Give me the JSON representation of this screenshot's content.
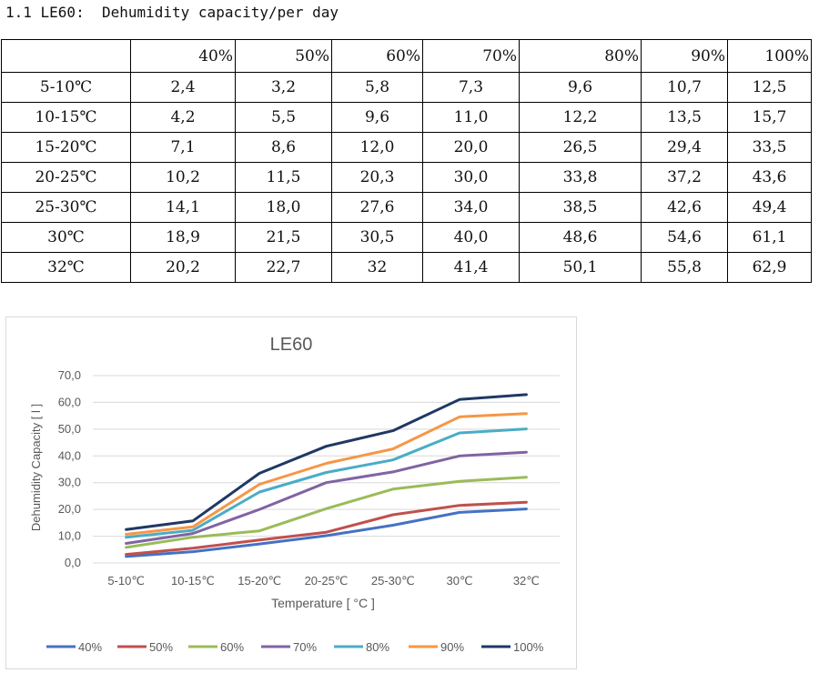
{
  "heading": "1.1 LE60:  Dehumidity capacity/per day",
  "table": {
    "columns": [
      "",
      "40%",
      "50%",
      "60%",
      "70%",
      "80%",
      "90%",
      "100%"
    ],
    "rows": [
      [
        "5-10℃",
        "2,4",
        "3,2",
        "5,8",
        "7,3",
        "9,6",
        "10,7",
        "12,5"
      ],
      [
        "10-15℃",
        "4,2",
        "5,5",
        "9,6",
        "11,0",
        "12,2",
        "13,5",
        "15,7"
      ],
      [
        "15-20℃",
        "7,1",
        "8,6",
        "12,0",
        "20,0",
        "26,5",
        "29,4",
        "33,5"
      ],
      [
        "20-25℃",
        "10,2",
        "11,5",
        "20,3",
        "30,0",
        "33,8",
        "37,2",
        "43,6"
      ],
      [
        "25-30℃",
        "14,1",
        "18,0",
        "27,6",
        "34,0",
        "38,5",
        "42,6",
        "49,4"
      ],
      [
        "30℃",
        "18,9",
        "21,5",
        "30,5",
        "40,0",
        "48,6",
        "54,6",
        "61,1"
      ],
      [
        "32℃",
        "20,2",
        "22,7",
        "32",
        "41,4",
        "50,1",
        "55,8",
        "62,9"
      ]
    ]
  },
  "chart_data": {
    "type": "line",
    "title": "LE60",
    "xlabel": "Temperature [ °C ]",
    "ylabel": "Dehumidity Capacity [ l ]",
    "categories": [
      "5-10℃",
      "10-15℃",
      "15-20℃",
      "20-25℃",
      "25-30℃",
      "30℃",
      "32℃"
    ],
    "ylim": [
      0,
      70
    ],
    "yticks": [
      0,
      10,
      20,
      30,
      40,
      50,
      60,
      70
    ],
    "ytick_labels": [
      "0,0",
      "10,0",
      "20,0",
      "30,0",
      "40,0",
      "50,0",
      "60,0",
      "70,0"
    ],
    "grid": true,
    "legend": "bottom",
    "series": [
      {
        "name": "40%",
        "color": "#4472C4",
        "values": [
          2.4,
          4.2,
          7.1,
          10.2,
          14.1,
          18.9,
          20.2
        ]
      },
      {
        "name": "50%",
        "color": "#C0504D",
        "values": [
          3.2,
          5.5,
          8.6,
          11.5,
          18.0,
          21.5,
          22.7
        ]
      },
      {
        "name": "60%",
        "color": "#9BBB59",
        "values": [
          5.8,
          9.6,
          12.0,
          20.3,
          27.6,
          30.5,
          32
        ]
      },
      {
        "name": "70%",
        "color": "#8064A2",
        "values": [
          7.3,
          11.0,
          20.0,
          30.0,
          34.0,
          40.0,
          41.4
        ]
      },
      {
        "name": "80%",
        "color": "#4BACC6",
        "values": [
          9.6,
          12.2,
          26.5,
          33.8,
          38.5,
          48.6,
          50.1
        ]
      },
      {
        "name": "90%",
        "color": "#F79646",
        "values": [
          10.7,
          13.5,
          29.4,
          37.2,
          42.6,
          54.6,
          55.8
        ]
      },
      {
        "name": "100%",
        "color": "#1F3864",
        "values": [
          12.5,
          15.7,
          33.5,
          43.6,
          49.4,
          61.1,
          62.9
        ]
      }
    ]
  }
}
